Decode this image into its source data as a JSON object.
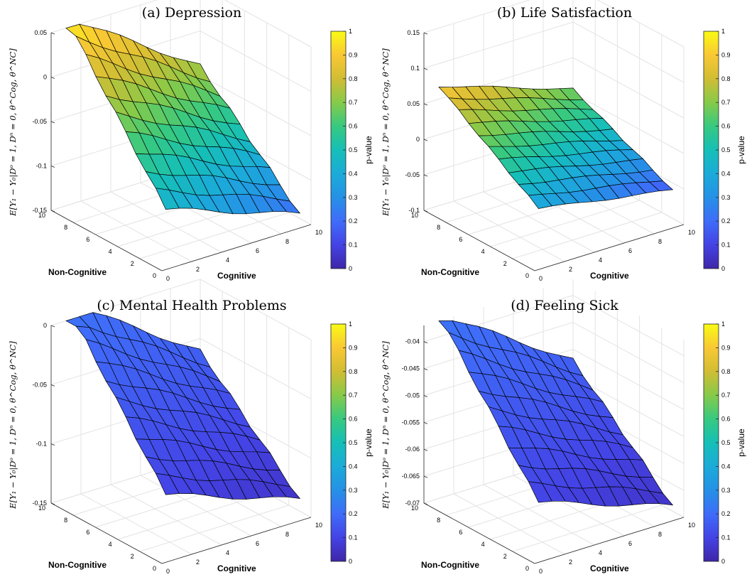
{
  "chart_data": [
    {
      "type": "surface",
      "title": "(a) Depression",
      "xlabel": "Non-Cognitive",
      "ylabel": "Cognitive",
      "zlabel": "E[Y₁ − Y₀|Dᵒ = 1, Dⁿ = 0, θ^Cog, θ^NC]",
      "colorbar_label": "p-value",
      "colorbar_ticks": [
        "0",
        "0.1",
        "0.2",
        "0.3",
        "0.4",
        "0.5",
        "0.6",
        "0.7",
        "0.8",
        "0.9",
        "1"
      ],
      "x_ticks": [
        "0",
        "2",
        "4",
        "6",
        "8",
        "10"
      ],
      "y_ticks": [
        "0",
        "2",
        "4",
        "6",
        "8",
        "10"
      ],
      "z_ticks": [
        "-0.15",
        "-0.1",
        "-0.05",
        "0",
        "0.05"
      ],
      "zlim": [
        -0.15,
        0.05
      ],
      "grid": "on",
      "surface": {
        "z_low": -0.145,
        "z_high": 0.048,
        "p_low": 0.2,
        "p_high": 0.98
      }
    },
    {
      "type": "surface",
      "title": "(b) Life Satisfaction",
      "xlabel": "Non-Cognitive",
      "ylabel": "Cognitive",
      "zlabel": "E[Y₁ − Y₀|Dᵒ = 1, Dⁿ = 0, θ^Cog, θ^NC]",
      "colorbar_label": "p-value",
      "colorbar_ticks": [
        "0",
        "0.1",
        "0.2",
        "0.3",
        "0.4",
        "0.5",
        "0.6",
        "0.7",
        "0.8",
        "0.9",
        "1"
      ],
      "x_ticks": [
        "0",
        "2",
        "4",
        "6",
        "8",
        "10"
      ],
      "y_ticks": [
        "0",
        "2",
        "4",
        "6",
        "8",
        "10"
      ],
      "z_ticks": [
        "-0.1",
        "-0.05",
        "0",
        "0.05",
        "0.1",
        "0.15"
      ],
      "zlim": [
        -0.1,
        0.15
      ],
      "grid": "on",
      "surface": {
        "z_low": -0.06,
        "z_high": 0.06,
        "p_low": 0.15,
        "p_high": 0.9
      }
    },
    {
      "type": "surface",
      "title": "(c) Mental Health Problems",
      "xlabel": "Non-Cognitive",
      "ylabel": "Cognitive",
      "zlabel": "E[Y₁ − Y₀|Dᵒ = 1, Dⁿ = 0, θ^Cog, θ^NC]",
      "colorbar_label": "p-value",
      "colorbar_ticks": [
        "0",
        "0.1",
        "0.2",
        "0.3",
        "0.4",
        "0.5",
        "0.6",
        "0.7",
        "0.8",
        "0.9",
        "1"
      ],
      "x_ticks": [
        "0",
        "2",
        "4",
        "6",
        "8",
        "10"
      ],
      "y_ticks": [
        "0",
        "2",
        "4",
        "6",
        "8",
        "10"
      ],
      "z_ticks": [
        "-0.15",
        "-0.1",
        "-0.05",
        "0"
      ],
      "zlim": [
        -0.15,
        0
      ],
      "grid": "on",
      "surface": {
        "z_low": -0.14,
        "z_high": 0.005,
        "p_low": 0.05,
        "p_high": 0.22
      }
    },
    {
      "type": "surface",
      "title": "(d) Feeling Sick",
      "xlabel": "Non-Cognitive",
      "ylabel": "Cognitive",
      "zlabel": "E[Y₁ − Y₀|Dᵒ = 1, Dⁿ = 0, θ^Cog, θ^NC]",
      "colorbar_label": "p-value",
      "colorbar_ticks": [
        "0",
        "0.1",
        "0.2",
        "0.3",
        "0.4",
        "0.5",
        "0.6",
        "0.7",
        "0.8",
        "0.9",
        "1"
      ],
      "x_ticks": [
        "0",
        "2",
        "4",
        "6",
        "8",
        "10"
      ],
      "y_ticks": [
        "0",
        "2",
        "4",
        "6",
        "8",
        "10"
      ],
      "z_ticks": [
        "-0.07",
        "-0.065",
        "-0.06",
        "-0.055",
        "-0.05",
        "-0.045",
        "-0.04"
      ],
      "zlim": [
        -0.07,
        -0.037
      ],
      "grid": "on",
      "surface": {
        "z_low": -0.069,
        "z_high": -0.038,
        "p_low": 0.05,
        "p_high": 0.22
      }
    }
  ]
}
